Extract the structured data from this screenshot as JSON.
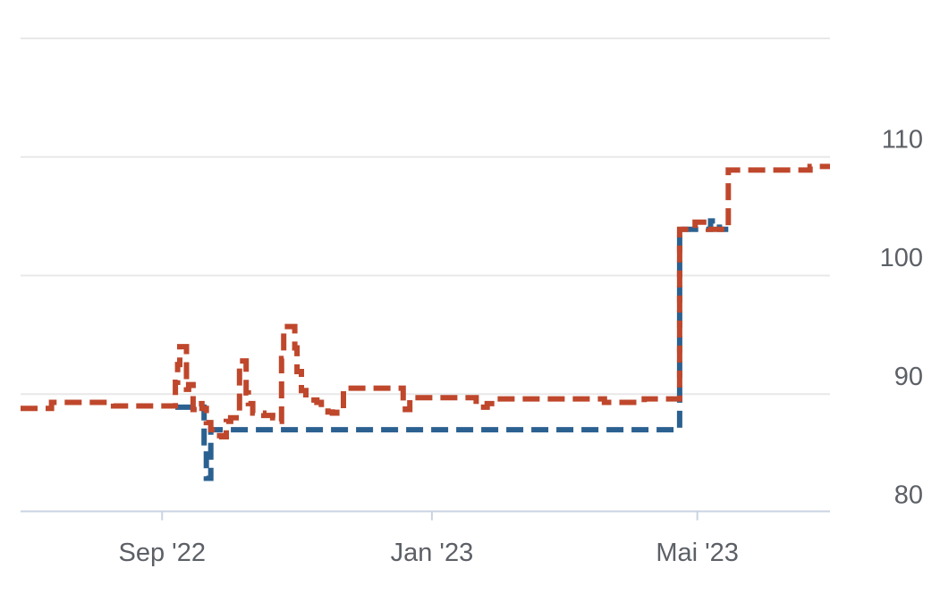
{
  "chart_data": {
    "type": "line",
    "title": "",
    "subtitle": "",
    "legend": false,
    "grid": true,
    "x_axis": {
      "type": "time",
      "label": "",
      "range_days": [
        0,
        366
      ],
      "range_note": "approx late Jun 2022 to end of Jun 2023",
      "ticks": [
        {
          "day": 64,
          "label": "Sep '22"
        },
        {
          "day": 186,
          "label": "Jan '23"
        },
        {
          "day": 306,
          "label": "Mai '23"
        }
      ]
    },
    "y_axis": {
      "label": "",
      "min": 80,
      "max": 120,
      "tick_values": [
        110,
        100,
        90,
        80
      ],
      "tick_labels": [
        "110",
        "100",
        "90",
        "80"
      ],
      "gridline_values": [
        120,
        110,
        100,
        90
      ],
      "labels_position": "right"
    },
    "series": [
      {
        "name": "blue-dashed-series",
        "color": "#2b6191",
        "line_style": "dashed",
        "interpolation": "step",
        "points": [
          [
            70,
            88.9
          ],
          [
            82,
            88.9
          ],
          [
            83,
            85.5
          ],
          [
            84,
            82.9
          ],
          [
            85.5,
            82.9
          ],
          [
            86,
            87.0
          ],
          [
            297,
            87.0
          ],
          [
            298,
            103.9
          ],
          [
            311,
            103.9
          ],
          [
            312,
            104.6
          ],
          [
            315,
            104.6
          ],
          [
            316,
            103.9
          ],
          [
            320,
            103.9
          ]
        ]
      },
      {
        "name": "red-dashed-series",
        "color": "#bf472c",
        "line_style": "dashed",
        "interpolation": "step",
        "points": [
          [
            0,
            88.8
          ],
          [
            13,
            88.8
          ],
          [
            14,
            89.3
          ],
          [
            40,
            89.3
          ],
          [
            42,
            89.0
          ],
          [
            69,
            89.0
          ],
          [
            70,
            91.0
          ],
          [
            71,
            92.5
          ],
          [
            72,
            94.0
          ],
          [
            74,
            94.0
          ],
          [
            75,
            90.4
          ],
          [
            76,
            90.8
          ],
          [
            78,
            88.7
          ],
          [
            80,
            89.2
          ],
          [
            82,
            88.8
          ],
          [
            84,
            87.6
          ],
          [
            86,
            87.0
          ],
          [
            88,
            86.5
          ],
          [
            91,
            86.4
          ],
          [
            93,
            87.7
          ],
          [
            95,
            88.0
          ],
          [
            98,
            88.0
          ],
          [
            99,
            92.8
          ],
          [
            101,
            92.8
          ],
          [
            102,
            90.1
          ],
          [
            103,
            89.2
          ],
          [
            105,
            88.4
          ],
          [
            110,
            88.2
          ],
          [
            114,
            88.0
          ],
          [
            117,
            87.7
          ],
          [
            118,
            93.0
          ],
          [
            119,
            95.7
          ],
          [
            123,
            95.7
          ],
          [
            124,
            93.9
          ],
          [
            125,
            91.9
          ],
          [
            127,
            90.3
          ],
          [
            129,
            89.5
          ],
          [
            134,
            89.3
          ],
          [
            136,
            88.8
          ],
          [
            139,
            88.5
          ],
          [
            141,
            88.4
          ],
          [
            143,
            88.8
          ],
          [
            145,
            88.8
          ],
          [
            146,
            90.5
          ],
          [
            172,
            90.5
          ],
          [
            173,
            89.0
          ],
          [
            174,
            88.7
          ],
          [
            176,
            89.7
          ],
          [
            204,
            89.7
          ],
          [
            206,
            88.9
          ],
          [
            209,
            88.9
          ],
          [
            211,
            89.2
          ],
          [
            213,
            89.6
          ],
          [
            262,
            89.6
          ],
          [
            264,
            89.3
          ],
          [
            280,
            89.3
          ],
          [
            282,
            89.6
          ],
          [
            297,
            89.6
          ],
          [
            298,
            103.9
          ],
          [
            304,
            103.9
          ],
          [
            305,
            104.5
          ],
          [
            310,
            104.5
          ],
          [
            311,
            103.9
          ],
          [
            319,
            103.9
          ],
          [
            320,
            108.9
          ],
          [
            355,
            108.9
          ],
          [
            357,
            109.2
          ],
          [
            366,
            109.2
          ]
        ]
      }
    ],
    "style": {
      "background_color": "#ffffff",
      "gridline_color": "#e8e8e8",
      "axis_line_color": "#c9d3e2",
      "tick_color": "#c9d3e2",
      "label_color": "#5c6066"
    }
  }
}
